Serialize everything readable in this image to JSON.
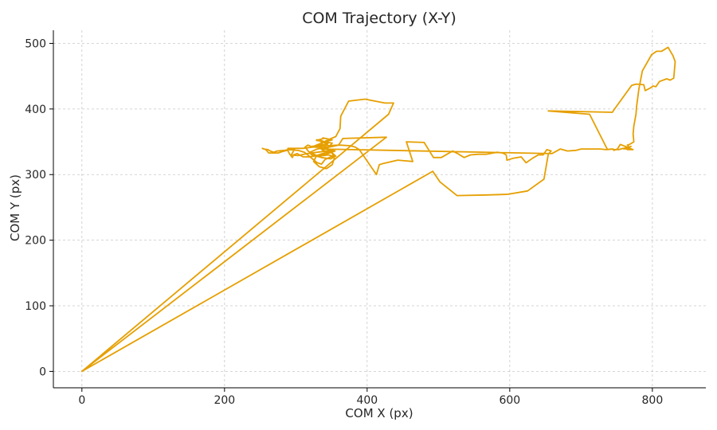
{
  "chart_data": {
    "type": "line",
    "title": "COM Trajectory (X-Y)",
    "xlabel": "COM X (px)",
    "ylabel": "COM Y (px)",
    "xlim": [
      -40,
      875
    ],
    "ylim": [
      -25,
      520
    ],
    "xticks": [
      0,
      200,
      400,
      600,
      800
    ],
    "yticks": [
      0,
      100,
      200,
      300,
      400,
      500
    ],
    "xtick_labels": [
      "0",
      "200",
      "400",
      "600",
      "800"
    ],
    "ytick_labels": [
      "0",
      "100",
      "200",
      "300",
      "400",
      "500"
    ],
    "grid": true,
    "line_color": "#E69F00",
    "series": [
      {
        "x": [
          0,
          427,
          366,
          360,
          343,
          323,
          317,
          313,
          318,
          331,
          346,
          354,
          349,
          336,
          322,
          320,
          330,
          346,
          351,
          336,
          329,
          339,
          338,
          351,
          338,
          327,
          336,
          355,
          342,
          319,
          310,
          302,
          297,
          295,
          293,
          299,
          289,
          288,
          281,
          275,
          270,
          266,
          262,
          258,
          253,
          255,
          261,
          264,
          269,
          274,
          284,
          291,
          299,
          310,
          325,
          342,
          361,
          376,
          383,
          389,
          413,
          417,
          423,
          443,
          464,
          455,
          480,
          493,
          504,
          512,
          520,
          527,
          536,
          545,
          556,
          567,
          582,
          590,
          595,
          596,
          605,
          616,
          623,
          632,
          640,
          647,
          652,
          658,
          654,
          648,
          625,
          597,
          569,
          526,
          502,
          492,
          0,
          430,
          437,
          425,
          397,
          374,
          363,
          362,
          356,
          343,
          336,
          331,
          338,
          351,
          356,
          349,
          341,
          336,
          330,
          320,
          312,
          303,
          288,
          292,
          303,
          316,
          330,
          344,
          352,
          340,
          329,
          325,
          333,
          343,
          351,
          354,
          350,
          340,
          345,
          338,
          332,
          329,
          333,
          339,
          345,
          335,
          323,
          328,
          340,
          345,
          345,
          337,
          659,
          671,
          681,
          693,
          700,
          712,
          727,
          735,
          742,
          747,
          753,
          759,
          763,
          769,
          765,
          773,
          762,
          755,
          751,
          746,
          745,
          744,
          737,
          712,
          654,
          744,
          747,
          771,
          777,
          788,
          790,
          797,
          801,
          805,
          810,
          820,
          825,
          830,
          832,
          831,
          829,
          822,
          816,
          813,
          806,
          799,
          786,
          781,
          778,
          777,
          774,
          773,
          774,
          768,
          765,
          768,
          770,
          767,
          762,
          760
        ],
        "y": [
          0,
          357,
          355,
          345,
          341,
          342,
          345,
          342,
          335,
          328,
          330,
          327,
          324,
          326,
          330,
          334,
          339,
          342,
          348,
          351,
          352,
          355,
          356,
          353,
          349,
          344,
          340,
          336,
          331,
          327,
          327,
          332,
          330,
          326,
          329,
          340,
          340,
          337,
          335,
          333,
          333,
          333,
          333,
          338,
          340,
          339,
          338,
          336,
          334,
          336,
          337,
          338,
          340,
          340,
          342,
          344,
          345,
          344,
          342,
          338,
          300,
          315,
          317,
          322,
          320,
          350,
          349,
          326,
          326,
          331,
          336,
          332,
          326,
          330,
          331,
          331,
          334,
          333,
          330,
          322,
          325,
          327,
          318,
          325,
          330,
          330,
          338,
          336,
          331,
          293,
          275,
          270,
          269,
          268,
          289,
          305,
          0,
          392,
          409,
          409,
          415,
          412,
          389,
          370,
          358,
          352,
          347,
          343,
          337,
          333,
          328,
          327,
          323,
          316,
          318,
          327,
          334,
          337,
          338,
          330,
          329,
          332,
          334,
          336,
          336,
          333,
          329,
          320,
          312,
          309,
          315,
          325,
          335,
          341,
          347,
          351,
          353,
          353,
          351,
          349,
          347,
          345,
          343,
          342,
          341,
          341,
          340,
          339,
          332,
          339,
          336,
          337,
          339,
          339,
          339,
          338,
          339,
          338,
          338,
          340,
          339,
          339,
          338,
          338,
          343,
          346,
          339,
          337,
          339,
          339,
          338,
          392,
          397,
          395,
          400,
          436,
          438,
          437,
          428,
          432,
          435,
          434,
          442,
          446,
          444,
          447,
          472,
          475,
          481,
          494,
          490,
          488,
          488,
          483,
          458,
          430,
          405,
          392,
          374,
          362,
          350,
          346,
          345,
          341,
          343,
          341,
          341,
          339
        ]
      }
    ]
  }
}
